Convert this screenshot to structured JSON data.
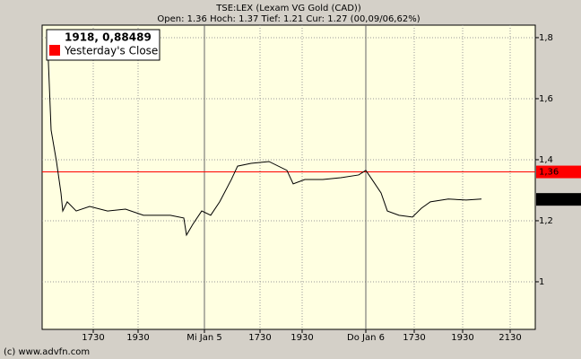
{
  "chart_data": {
    "type": "line",
    "title": "TSE:LEX (Lexam VG Gold (CAD))",
    "subtitle": "Open: 1.36 Hoch: 1.37 Tief: 1.21 Cur: 1.27 (00,09/06,62%)",
    "footer": "(c) www.advfn.com",
    "legend_header": "1918, 0,88489",
    "x": [
      1.2,
      2,
      3.2,
      4.2,
      4.6,
      5.6,
      7.6,
      10.6,
      14.6,
      18.6,
      22.6,
      28.6,
      31.6,
      32.2,
      33.6,
      35.6,
      37.6,
      39.6,
      42.2,
      43.6,
      46.6,
      50.6,
      54.6,
      56,
      58.6,
      62.6,
      66.6,
      70.6,
      72.2,
      73.6,
      75.6,
      77,
      79.6,
      82.6,
      84.6,
      86.6,
      90.6,
      94.6,
      98
    ],
    "series": [
      {
        "color": "#000000",
        "values": [
          1.791,
          1.497,
          1.394,
          1.291,
          1.232,
          1.262,
          1.232,
          1.247,
          1.232,
          1.238,
          1.218,
          1.218,
          1.209,
          1.153,
          1.188,
          1.232,
          1.218,
          1.262,
          1.335,
          1.379,
          1.388,
          1.394,
          1.365,
          1.321,
          1.335,
          1.335,
          1.341,
          1.35,
          1.365,
          1.335,
          1.291,
          1.232,
          1.218,
          1.212,
          1.241,
          1.262,
          1.271,
          1.268,
          1.271
        ]
      }
    ],
    "reference_lines": [
      {
        "name": "Yesterday's Close",
        "value": 1.36,
        "label": "1,36",
        "color": "#ff0000"
      }
    ],
    "current": {
      "value": 1.27,
      "label": "1,27"
    },
    "xlim": [
      0,
      110
    ],
    "xticks": [
      {
        "value": 11.4,
        "label": "1730"
      },
      {
        "value": 21.4,
        "label": "1930"
      },
      {
        "value": 36.2,
        "label": "Mi Jan 5"
      },
      {
        "value": 48.6,
        "label": "1730"
      },
      {
        "value": 58,
        "label": "1930"
      },
      {
        "value": 72.2,
        "label": "Do Jan 6"
      },
      {
        "value": 83,
        "label": "1730"
      },
      {
        "value": 93.8,
        "label": "1930"
      },
      {
        "value": 104.4,
        "label": "2130"
      }
    ],
    "ylim": [
      0.844,
      1.841
    ],
    "yticks": [
      1,
      {
        "value": 1.2,
        "label": "1,2"
      },
      {
        "value": 1.4,
        "label": "1,4"
      },
      {
        "value": 1.6,
        "label": "1,6"
      },
      {
        "value": 1.8,
        "label": "1,8"
      }
    ],
    "grid": true
  }
}
